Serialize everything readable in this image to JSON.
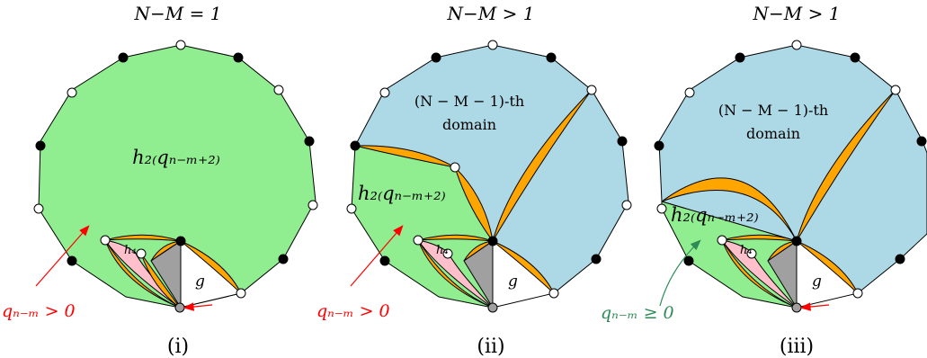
{
  "colors": {
    "green": "#90ee90",
    "blue": "#add8e6",
    "orange": "#ffa500",
    "pink": "#ffc0cb",
    "gray": "#a0a0a0",
    "red": "#ff0000",
    "teal": "#2e8b57"
  },
  "panels": [
    {
      "id": "i",
      "title": "N−M = 1",
      "caption": "(i)",
      "big_label": "h₂₍qₙ₋ₘ₊₂₎",
      "domain_line1": "",
      "domain_line2": "",
      "small_label": "h₄",
      "g_label": "g",
      "q_label": "qₙ₋ₘ > 0",
      "q_color": "#ff0000"
    },
    {
      "id": "ii",
      "title": "N−M > 1",
      "caption": "(ii)",
      "big_label": "h₂₍qₙ₋ₘ₊₂₎",
      "domain_line1": "(N − M − 1)-th",
      "domain_line2": "domain",
      "small_label": "h₄",
      "g_label": "g",
      "q_label": "qₙ₋ₘ > 0",
      "q_color": "#ff0000"
    },
    {
      "id": "iii",
      "title": "N−M > 1",
      "caption": "(iii)",
      "big_label": "h₂₍qₙ₋ₘ₊₂₎",
      "domain_line1": "(N − M − 1)-th",
      "domain_line2": "domain",
      "small_label": "h₄",
      "g_label": "g",
      "q_label": "qₙ₋ₘ ≥ 0",
      "q_color": "#2e8b57"
    }
  ]
}
